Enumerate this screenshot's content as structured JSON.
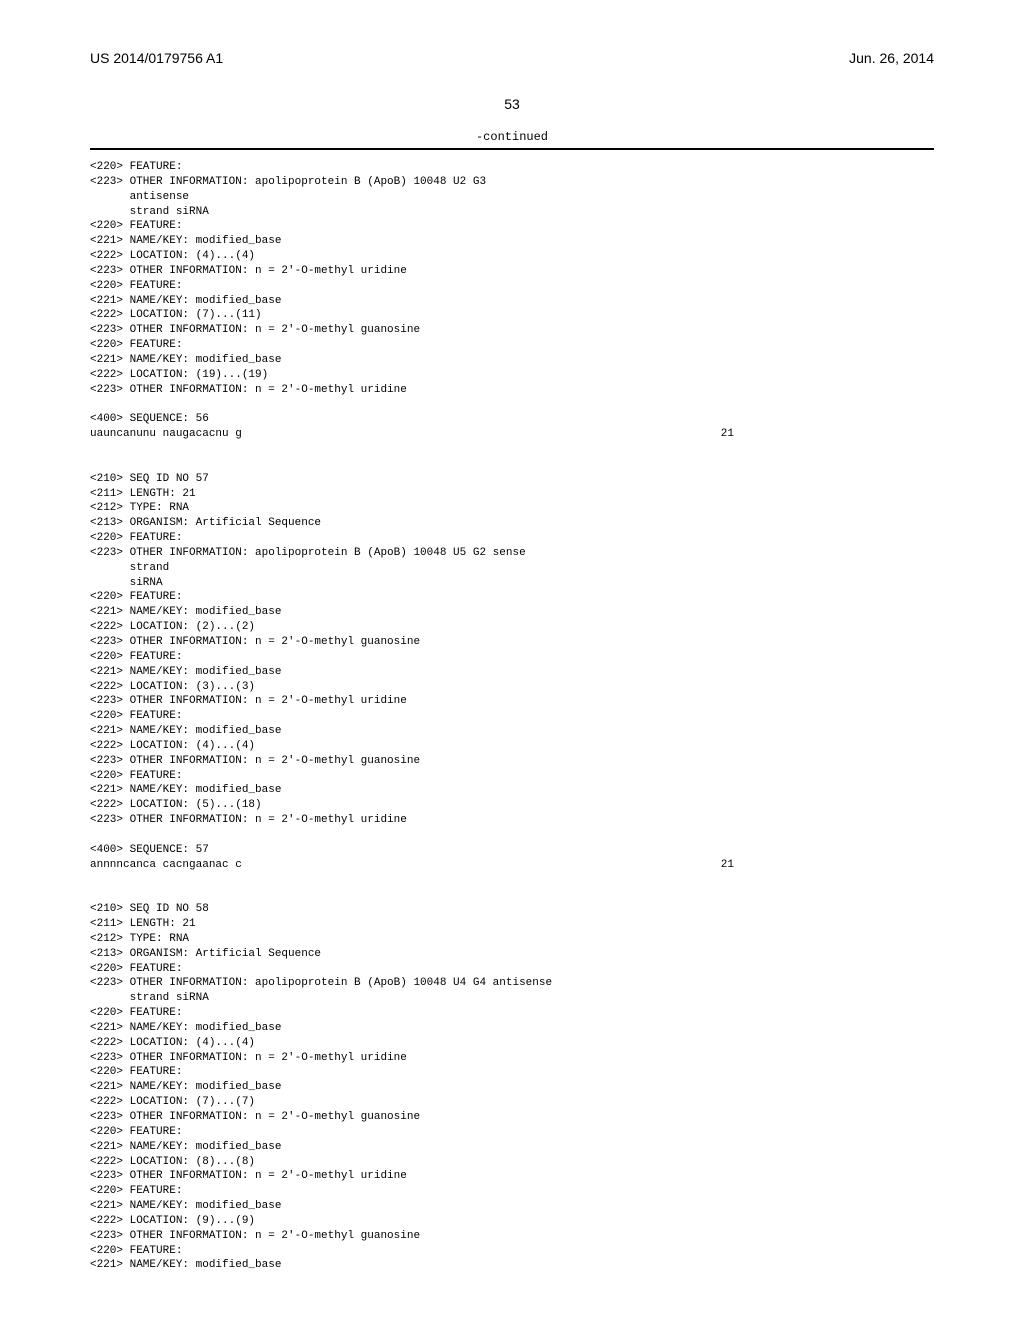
{
  "header": {
    "publication_number": "US 2014/0179756 A1",
    "date": "Jun. 26, 2014"
  },
  "page_number": "53",
  "continued_label": "-continued",
  "blocks": [
    {
      "lines": [
        "<220> FEATURE:",
        "<223> OTHER INFORMATION: apolipoprotein B (ApoB) 10048 U2 G3",
        "      antisense",
        "      strand siRNA",
        "<220> FEATURE:",
        "<221> NAME/KEY: modified_base",
        "<222> LOCATION: (4)...(4)",
        "<223> OTHER INFORMATION: n = 2'-O-methyl uridine",
        "<220> FEATURE:",
        "<221> NAME/KEY: modified_base",
        "<222> LOCATION: (7)...(11)",
        "<223> OTHER INFORMATION: n = 2'-O-methyl guanosine",
        "<220> FEATURE:",
        "<221> NAME/KEY: modified_base",
        "<222> LOCATION: (19)...(19)",
        "<223> OTHER INFORMATION: n = 2'-O-methyl uridine",
        "",
        "<400> SEQUENCE: 56",
        ""
      ],
      "sequence_line": {
        "seq": "uauncanunu naugacacnu g",
        "len": "21"
      }
    },
    {
      "lines": [
        "",
        "",
        "<210> SEQ ID NO 57",
        "<211> LENGTH: 21",
        "<212> TYPE: RNA",
        "<213> ORGANISM: Artificial Sequence",
        "<220> FEATURE:",
        "<223> OTHER INFORMATION: apolipoprotein B (ApoB) 10048 U5 G2 sense",
        "      strand",
        "      siRNA",
        "<220> FEATURE:",
        "<221> NAME/KEY: modified_base",
        "<222> LOCATION: (2)...(2)",
        "<223> OTHER INFORMATION: n = 2'-O-methyl guanosine",
        "<220> FEATURE:",
        "<221> NAME/KEY: modified_base",
        "<222> LOCATION: (3)...(3)",
        "<223> OTHER INFORMATION: n = 2'-O-methyl uridine",
        "<220> FEATURE:",
        "<221> NAME/KEY: modified_base",
        "<222> LOCATION: (4)...(4)",
        "<223> OTHER INFORMATION: n = 2'-O-methyl guanosine",
        "<220> FEATURE:",
        "<221> NAME/KEY: modified_base",
        "<222> LOCATION: (5)...(18)",
        "<223> OTHER INFORMATION: n = 2'-O-methyl uridine",
        "",
        "<400> SEQUENCE: 57",
        ""
      ],
      "sequence_line": {
        "seq": "annnncanca cacngaanac c",
        "len": "21"
      }
    },
    {
      "lines": [
        "",
        "",
        "<210> SEQ ID NO 58",
        "<211> LENGTH: 21",
        "<212> TYPE: RNA",
        "<213> ORGANISM: Artificial Sequence",
        "<220> FEATURE:",
        "<223> OTHER INFORMATION: apolipoprotein B (ApoB) 10048 U4 G4 antisense",
        "      strand siRNA",
        "<220> FEATURE:",
        "<221> NAME/KEY: modified_base",
        "<222> LOCATION: (4)...(4)",
        "<223> OTHER INFORMATION: n = 2'-O-methyl uridine",
        "<220> FEATURE:",
        "<221> NAME/KEY: modified_base",
        "<222> LOCATION: (7)...(7)",
        "<223> OTHER INFORMATION: n = 2'-O-methyl guanosine",
        "<220> FEATURE:",
        "<221> NAME/KEY: modified_base",
        "<222> LOCATION: (8)...(8)",
        "<223> OTHER INFORMATION: n = 2'-O-methyl uridine",
        "<220> FEATURE:",
        "<221> NAME/KEY: modified_base",
        "<222> LOCATION: (9)...(9)",
        "<223> OTHER INFORMATION: n = 2'-O-methyl guanosine",
        "<220> FEATURE:",
        "<221> NAME/KEY: modified_base"
      ]
    }
  ]
}
